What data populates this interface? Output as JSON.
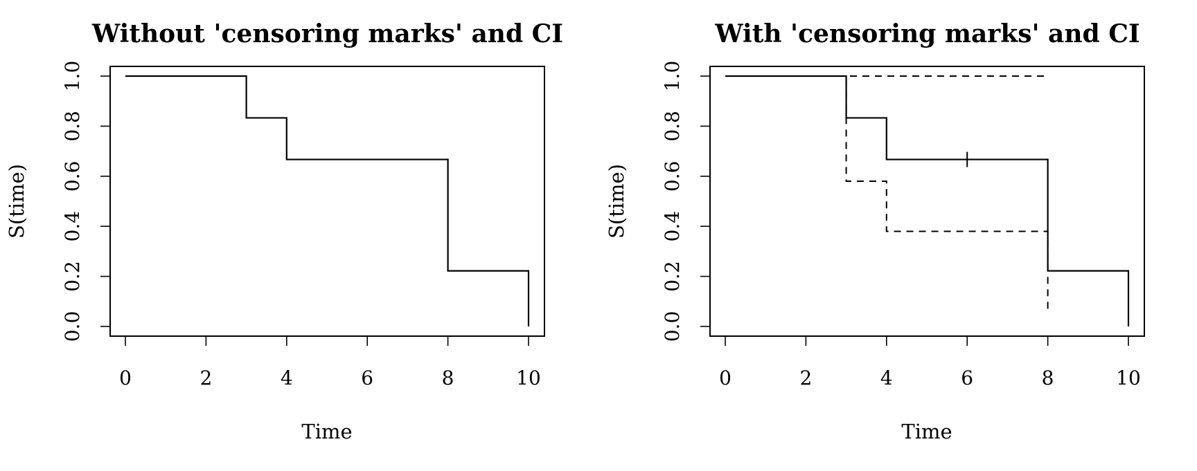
{
  "chart_data": [
    {
      "type": "line",
      "step": true,
      "title": "Without 'censoring marks' and CI",
      "xlabel": "Time",
      "ylabel": "S(time)",
      "xlim": [
        0,
        10
      ],
      "ylim": [
        0,
        1
      ],
      "xticks": [
        0,
        2,
        4,
        6,
        8,
        10
      ],
      "xtick_labels": [
        "0",
        "2",
        "4",
        "6",
        "8",
        "10"
      ],
      "yticks": [
        0,
        0.2,
        0.4,
        0.6,
        0.8,
        1
      ],
      "ytick_labels": [
        "0.0",
        "0.2",
        "0.4",
        "0.6",
        "0.8",
        "1.0"
      ],
      "grid": false,
      "series": [
        {
          "style": "solid",
          "x": [
            0,
            3,
            4,
            8,
            10
          ],
          "y": [
            1.0,
            0.833,
            0.667,
            0.222,
            0.0
          ]
        }
      ],
      "censor_marks": []
    },
    {
      "type": "line",
      "step": true,
      "title": "With 'censoring marks' and CI",
      "xlabel": "Time",
      "ylabel": "S(time)",
      "xlim": [
        0,
        10
      ],
      "ylim": [
        0,
        1
      ],
      "xticks": [
        0,
        2,
        4,
        6,
        8,
        10
      ],
      "xtick_labels": [
        "0",
        "2",
        "4",
        "6",
        "8",
        "10"
      ],
      "yticks": [
        0,
        0.2,
        0.4,
        0.6,
        0.8,
        1
      ],
      "ytick_labels": [
        "0.0",
        "0.2",
        "0.4",
        "0.6",
        "0.8",
        "1.0"
      ],
      "grid": false,
      "series": [
        {
          "style": "solid",
          "x": [
            0,
            3,
            4,
            8,
            10
          ],
          "y": [
            1.0,
            0.833,
            0.667,
            0.222,
            0.0
          ]
        },
        {
          "style": "dashed",
          "x": [
            0,
            3,
            8
          ],
          "y": [
            1.0,
            1.0,
            1.0
          ],
          "end_x": 8
        },
        {
          "style": "dashed",
          "x": [
            0,
            3,
            4,
            8
          ],
          "y": [
            1.0,
            0.58,
            0.38,
            0.06
          ],
          "end_x": 8
        }
      ],
      "censor_marks": [
        {
          "x": 6,
          "y": 0.667
        }
      ]
    }
  ]
}
